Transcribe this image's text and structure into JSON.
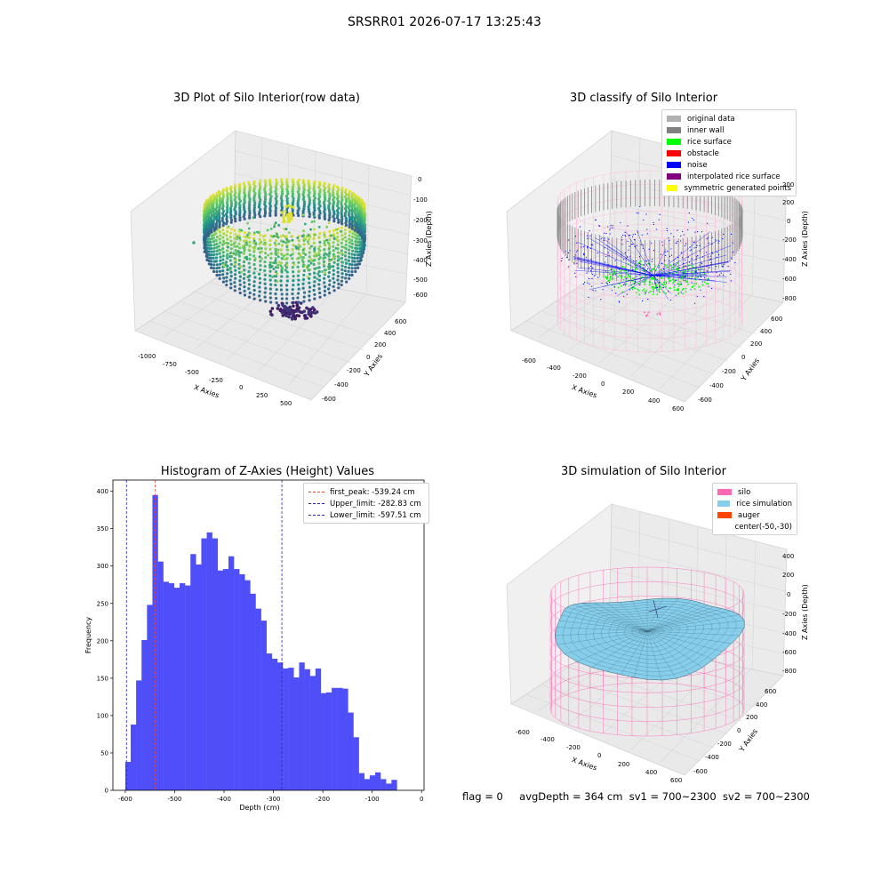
{
  "figure": {
    "title": "SRSRR01 2026-07-17 13:25:43",
    "footer": {
      "flag": "flag = 0",
      "avg_depth": "avgDepth = 364 cm",
      "sv1": "sv1 = 700~2300",
      "sv2": "sv2 = 700~2300"
    }
  },
  "colors": {
    "hist_bar": "#4f4ff9",
    "first_peak": "#e8453c",
    "limits": "#2323cc",
    "silo": "#ff69b4",
    "rice_sim": "#87ceeb",
    "auger": "#ff4500"
  },
  "chart_data": [
    {
      "type": "scatter",
      "title": "3D Plot of Silo Interior(row data)",
      "xlabel": "X Axies",
      "ylabel": "Y Axies",
      "zlabel": "Z Axies (Depth)",
      "x_ticks": [
        "-1000",
        "-750",
        "-500",
        "-250",
        "0",
        "250",
        "500"
      ],
      "y_ticks": [
        "-600",
        "-400",
        "-200",
        "0",
        "200",
        "400",
        "600"
      ],
      "z_ticks": [
        "0",
        "-100",
        "-200",
        "-300",
        "-400",
        "-500",
        "-600"
      ],
      "colormap": "viridis"
    },
    {
      "type": "scatter",
      "title": "3D classify of Silo Interior",
      "xlabel": "X Axies",
      "ylabel": "Y Axies",
      "zlabel": "Z Axies (Depth)",
      "x_ticks": [
        "-600",
        "-400",
        "-200",
        "0",
        "200",
        "400",
        "600"
      ],
      "y_ticks": [
        "-600",
        "-400",
        "-200",
        "0",
        "200",
        "400",
        "600"
      ],
      "z_ticks": [
        "200",
        "0",
        "-200",
        "-400",
        "-600",
        "-800"
      ],
      "legend_position": "upper right",
      "legend": [
        {
          "label": "original data",
          "color": "#b0b0b0"
        },
        {
          "label": "inner wall",
          "color": "#808080"
        },
        {
          "label": "rice surface",
          "color": "#00ff00"
        },
        {
          "label": "obstacle",
          "color": "#ff0000"
        },
        {
          "label": "noise",
          "color": "#0000ff"
        },
        {
          "label": "interpolated rice surface",
          "color": "#800080"
        },
        {
          "label": "symmetric generated points",
          "color": "#ffff00"
        }
      ]
    },
    {
      "type": "bar",
      "title": "Histogram of Z-Axies (Height) Values",
      "xlabel": "Depth (cm)",
      "ylabel": "Frequency",
      "xlim": [
        -625,
        5
      ],
      "ylim": [
        0,
        415
      ],
      "x_ticks": [
        -600,
        -500,
        -400,
        -300,
        -200,
        -100,
        0
      ],
      "y_ticks": [
        0,
        50,
        100,
        150,
        200,
        250,
        300,
        350,
        400
      ],
      "bin_edges_start": -600,
      "bin_width": 11,
      "values": [
        38,
        88,
        147,
        201,
        248,
        395,
        306,
        279,
        277,
        271,
        277,
        274,
        316,
        302,
        337,
        345,
        337,
        294,
        296,
        313,
        296,
        289,
        281,
        263,
        243,
        227,
        183,
        176,
        171,
        163,
        164,
        151,
        171,
        162,
        153,
        163,
        130,
        131,
        137,
        137,
        136,
        104,
        71,
        23,
        15,
        20,
        24,
        15,
        9,
        14
      ],
      "lines": [
        {
          "label": "first_peak: -539.24 cm",
          "x": -539.24,
          "style": "dashed",
          "color": "red"
        },
        {
          "label": "Upper_limit: -282.83 cm",
          "x": -282.83,
          "style": "dashed",
          "color": "blue"
        },
        {
          "label": "Lower_limit: -597.51 cm",
          "x": -597.51,
          "style": "dashed",
          "color": "blue"
        }
      ],
      "legend_position": "upper right"
    },
    {
      "type": "scatter",
      "title": "3D simulation of Silo Interior",
      "xlabel": "X Axies",
      "ylabel": "Y Axies",
      "zlabel": "Z Axies (Depth)",
      "x_ticks": [
        "-600",
        "-400",
        "-200",
        "0",
        "200",
        "400",
        "600"
      ],
      "y_ticks": [
        "-600",
        "-400",
        "-200",
        "0",
        "200",
        "400",
        "600"
      ],
      "z_ticks": [
        "400",
        "200",
        "0",
        "-200",
        "-400",
        "-600",
        "-800"
      ],
      "legend_position": "upper right",
      "legend": [
        {
          "label": "silo",
          "color": "#ff69b4"
        },
        {
          "label": "rice simulation",
          "color": "#87ceeb"
        },
        {
          "label": "auger",
          "color": "#ff4500"
        },
        {
          "label": "center(-50,-30)",
          "color": ""
        }
      ]
    }
  ]
}
